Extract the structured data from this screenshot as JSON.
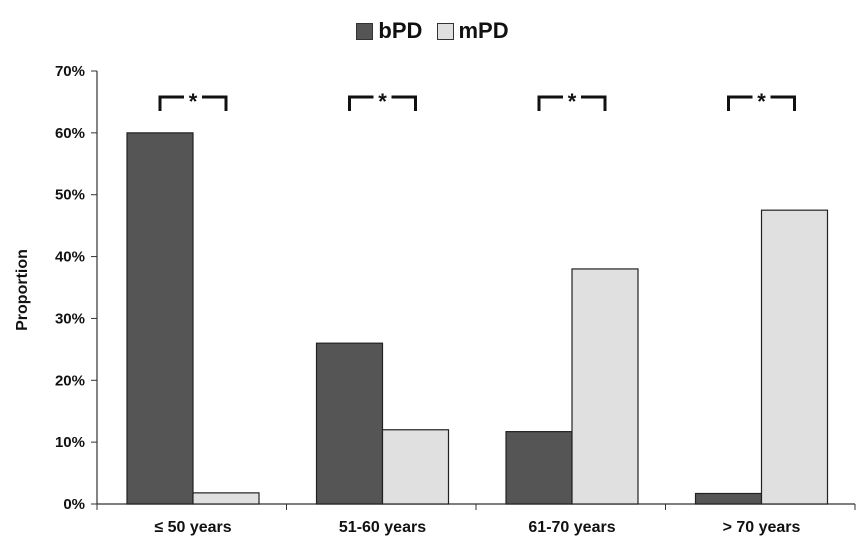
{
  "chart_data": {
    "type": "bar",
    "categories": [
      "≤ 50 years",
      "51-60 years",
      "61-70 years",
      "> 70 years"
    ],
    "series": [
      {
        "name": "bPD",
        "values": [
          60,
          26,
          11.7,
          1.7
        ],
        "color": "#555555"
      },
      {
        "name": "mPD",
        "values": [
          1.8,
          12,
          38,
          47.5
        ],
        "color": "#e0e0e0"
      }
    ],
    "ylabel": "Proportion",
    "ylim": [
      0,
      70
    ],
    "yticks": [
      "0%",
      "10%",
      "20%",
      "30%",
      "40%",
      "50%",
      "60%",
      "70%"
    ],
    "significance_marker": "*",
    "legend_position": "top-center",
    "grid": false
  }
}
